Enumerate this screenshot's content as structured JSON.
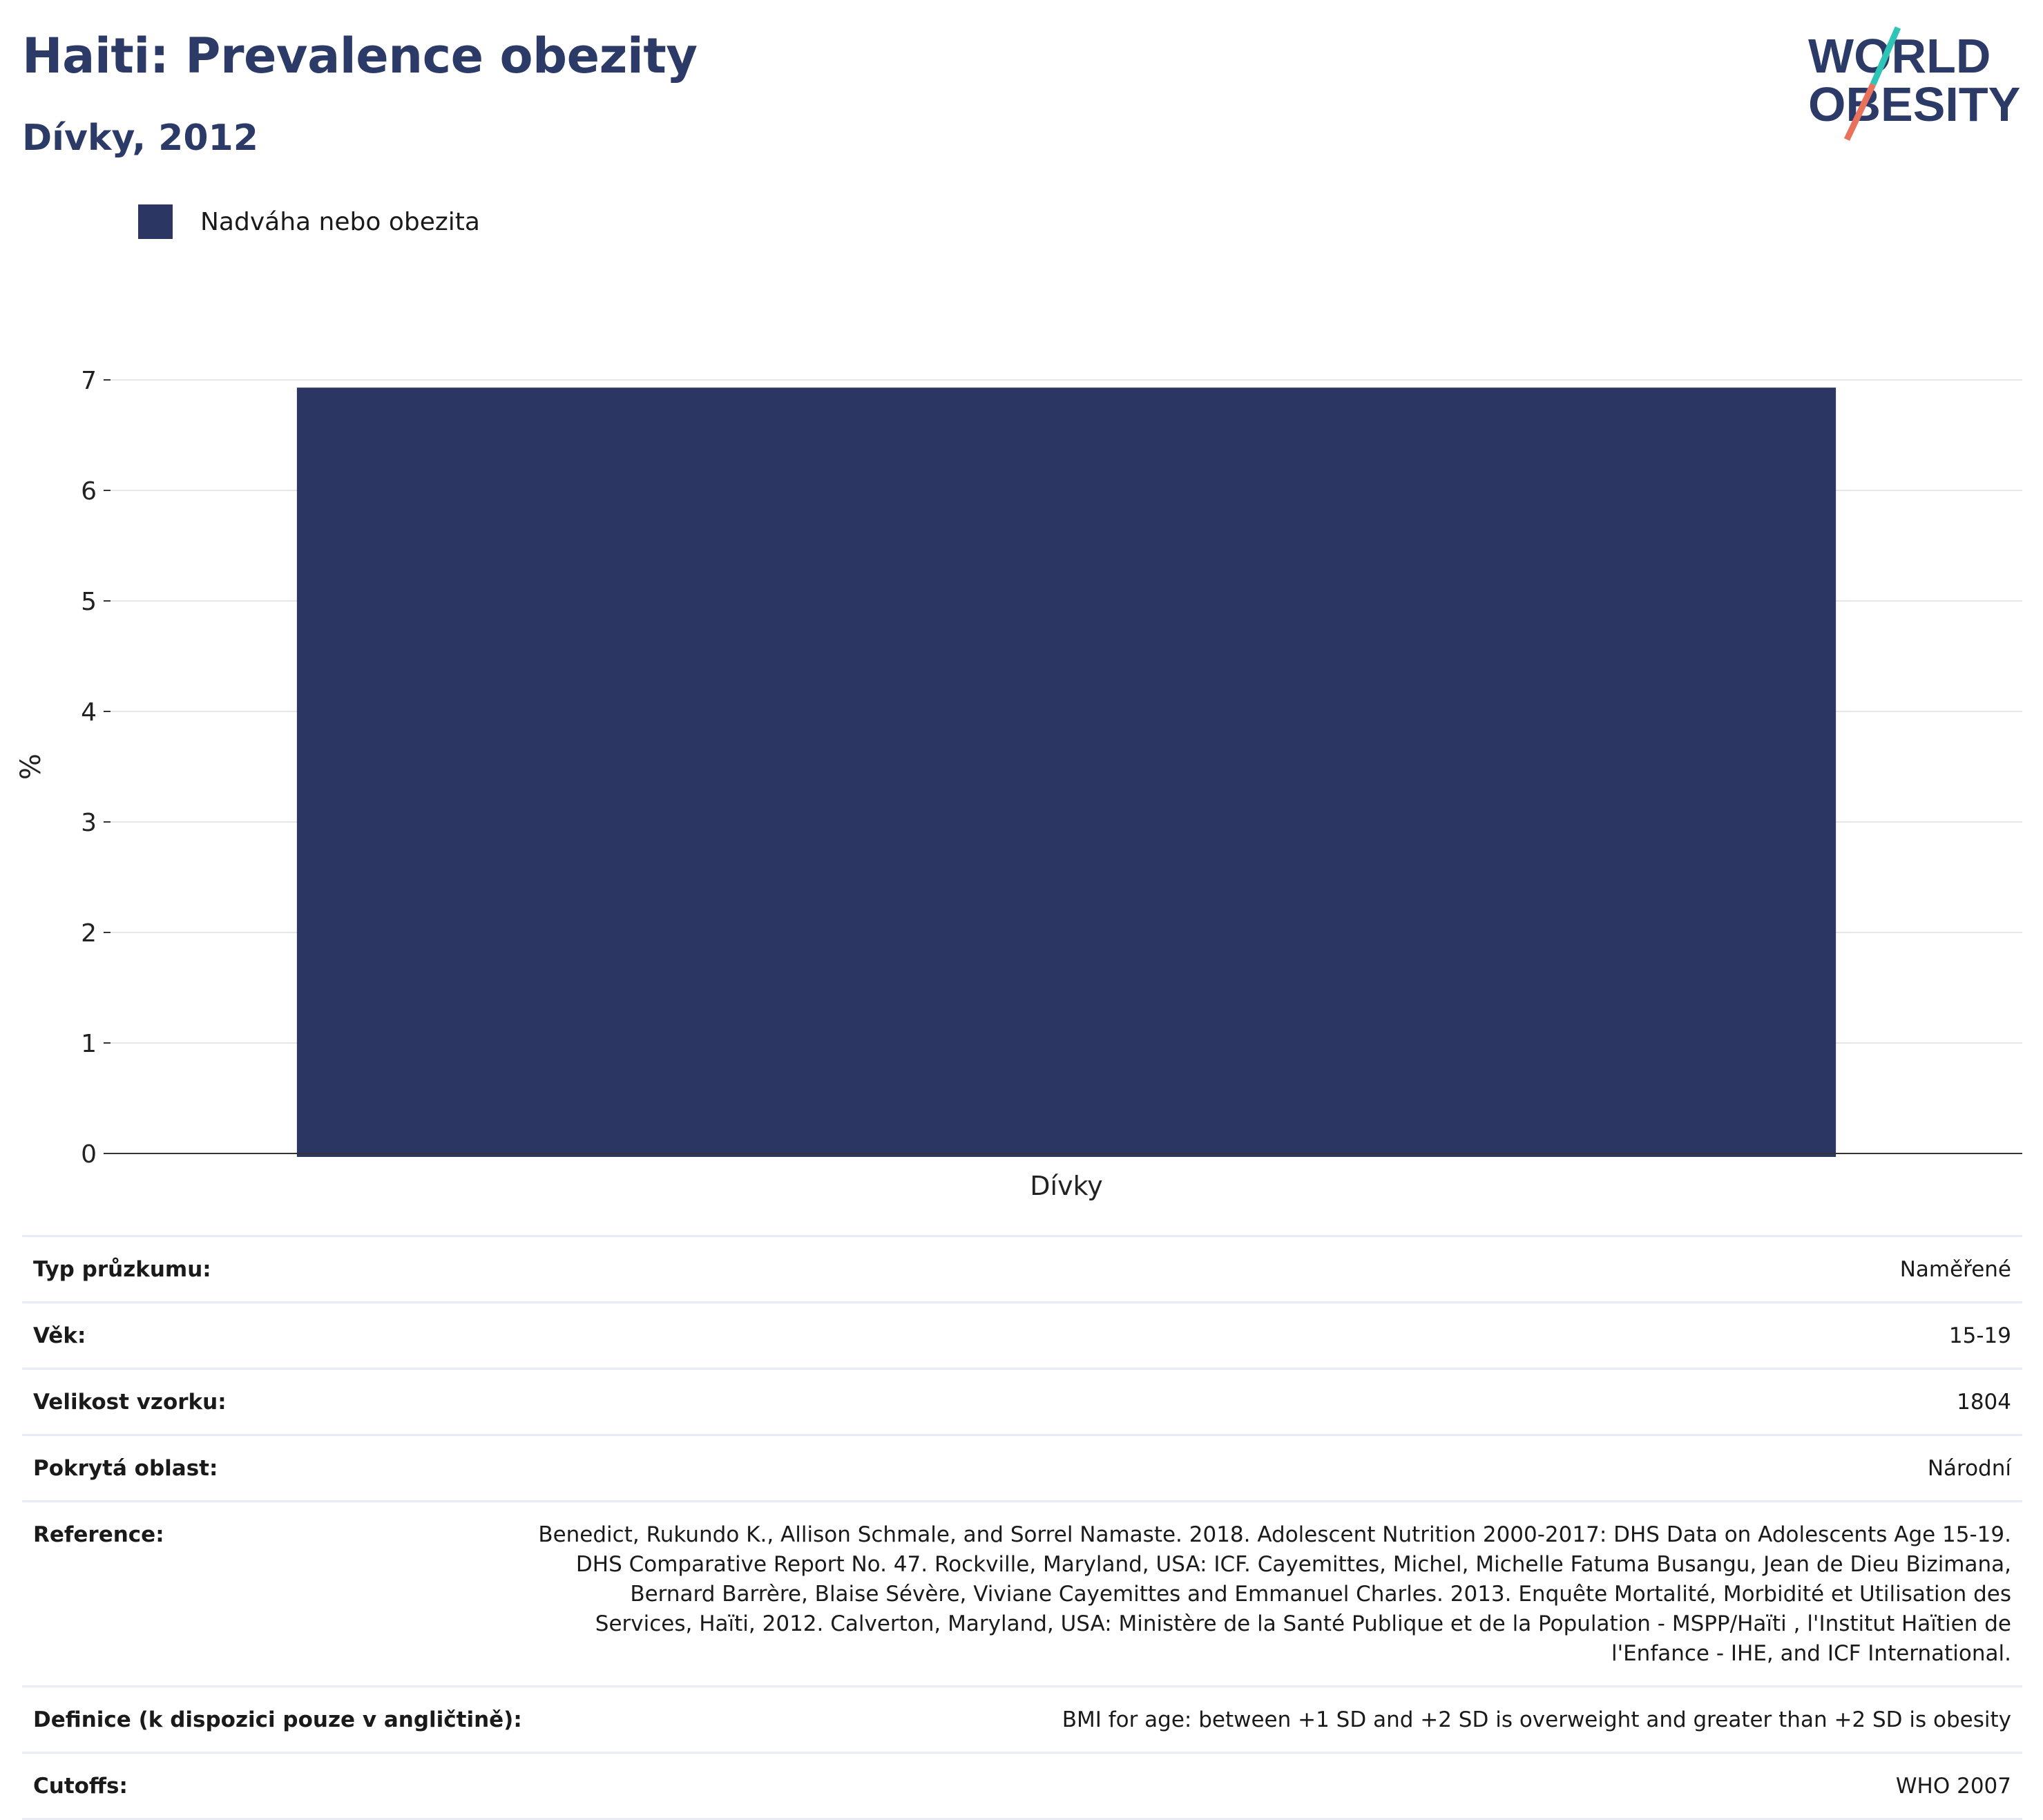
{
  "title": "Haiti: Prevalence obezity",
  "subtitle": "Dívky, 2012",
  "logo": {
    "line1": "WORLD",
    "line2": "OBESITY"
  },
  "colors": {
    "bar": "#2b3663",
    "title": "#2b3a67",
    "logo_teal": "#2ec4b6",
    "logo_coral": "#e8725c"
  },
  "chart_data": {
    "type": "bar",
    "categories": [
      "Dívky"
    ],
    "series": [
      {
        "name": "Nadváha nebo obezita",
        "values": [
          6.93
        ]
      }
    ],
    "ylabel": "%",
    "ylim": [
      0,
      7
    ],
    "yticks": [
      "0",
      "1",
      "2",
      "3",
      "4",
      "5",
      "6",
      "7"
    ],
    "grid": true,
    "legend": "top-left"
  },
  "meta": [
    {
      "key": "Typ průzkumu:",
      "value": "Naměřené"
    },
    {
      "key": "Věk:",
      "value": "15-19"
    },
    {
      "key": "Velikost vzorku:",
      "value": "1804"
    },
    {
      "key": "Pokrytá oblast:",
      "value": "Národní"
    },
    {
      "key": "Reference:",
      "value": "Benedict, Rukundo K., Allison Schmale, and Sorrel Namaste. 2018. Adolescent Nutrition 2000-2017: DHS Data on Adolescents Age 15-19. DHS Comparative Report No. 47. Rockville, Maryland, USA: ICF. Cayemittes, Michel, Michelle Fatuma Busangu, Jean de Dieu Bizimana, Bernard Barrère, Blaise Sévère, Viviane Cayemittes and Emmanuel Charles. 2013. Enquête Mortalité, Morbidité et Utilisation des Services, Haïti, 2012. Calverton, Maryland, USA: Ministère de la Santé Publique et de la Population - MSPP/Haïti , l'Institut Haïtien de l'Enfance - IHE, and ICF International."
    },
    {
      "key": "Definice (k dispozici pouze v angličtině):",
      "value": "BMI for age: between +1 SD and +2 SD is overweight and greater than +2 SD is obesity"
    },
    {
      "key": "Cutoffs:",
      "value": "WHO 2007"
    }
  ]
}
